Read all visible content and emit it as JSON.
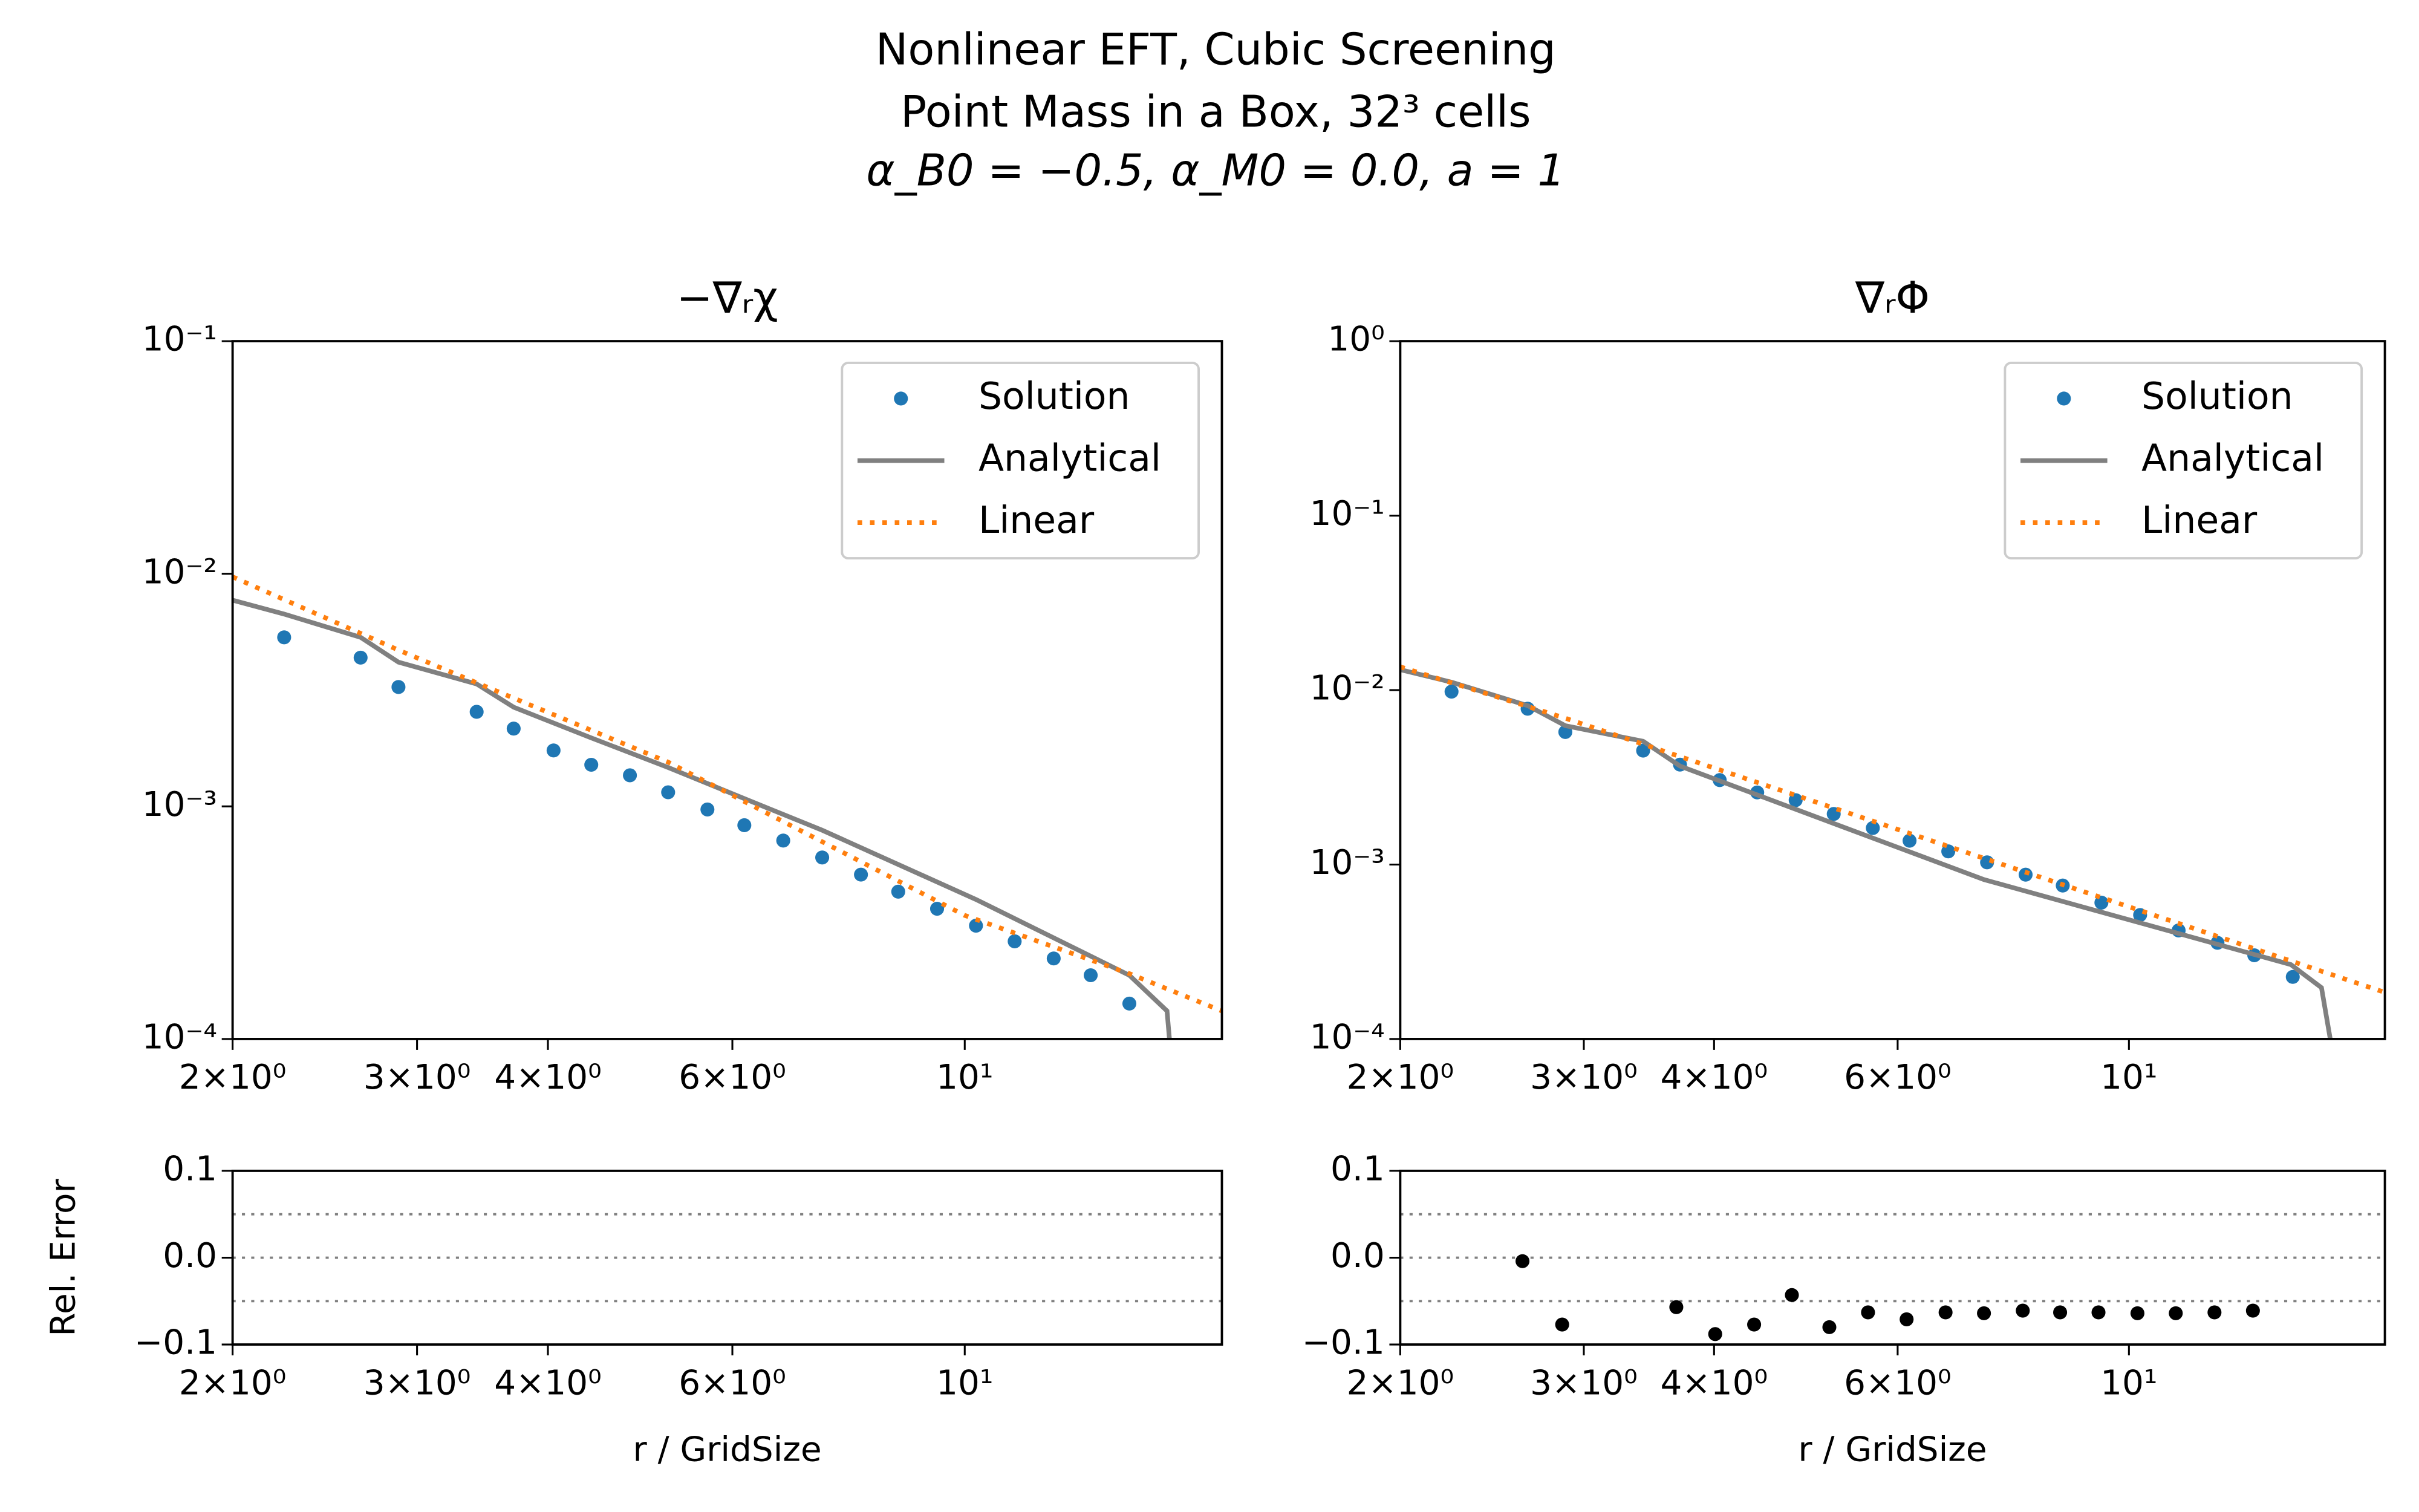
{
  "title_lines": [
    "Nonlinear EFT, Cubic Screening",
    "Point Mass in a Box, 32³ cells",
    "α_B0 = −0.5, α_M0 = 0.0, a = 1"
  ],
  "chart_data": [
    {
      "type": "line",
      "title": "−∇ᵣχ",
      "xlog": true,
      "ylog": true,
      "legend": "upper right",
      "xlim": [
        2,
        17.6
      ],
      "ylim": [
        0.0001,
        0.1
      ],
      "xticks": [
        {
          "value": 2,
          "label": "2×10⁰"
        },
        {
          "value": 3,
          "label": "3×10⁰"
        },
        {
          "value": 4,
          "label": "4×10⁰"
        },
        {
          "value": 6,
          "label": "6×10⁰"
        },
        {
          "value": 10,
          "label": "10¹"
        }
      ],
      "yticks": [
        {
          "value": 0.1,
          "label": "10⁻¹"
        },
        {
          "value": 0.01,
          "label": "10⁻²"
        },
        {
          "value": 0.001,
          "label": "10⁻³"
        },
        {
          "value": 0.0001,
          "label": "10⁻⁴"
        }
      ],
      "series": [
        {
          "name": "Solution",
          "color": "#1f77b4",
          "style": "markers",
          "x": [
            2.24,
            2.65,
            2.88,
            3.42,
            3.71,
            4.05,
            4.4,
            4.79,
            5.21,
            5.68,
            6.16,
            6.71,
            7.31,
            7.96,
            8.64,
            9.41,
            10.25,
            11.16,
            12.16,
            13.19,
            14.36
          ],
          "values": [
            0.00533,
            0.00436,
            0.00326,
            0.00255,
            0.00216,
            0.00174,
            0.00151,
            0.00136,
            0.00115,
            0.00097,
            0.00083,
            0.000713,
            0.000603,
            0.000509,
            0.00043,
            0.000363,
            0.000307,
            0.000263,
            0.000222,
            0.000188,
            0.000142
          ]
        },
        {
          "name": "Analytical",
          "color": "#808080",
          "style": "solid",
          "x": [
            2,
            2.24,
            2.65,
            2.88,
            3.42,
            3.71,
            4.4,
            5.21,
            6.16,
            7.31,
            10.25,
            14.36,
            15.6,
            15.75
          ],
          "values": [
            0.0077,
            0.00671,
            0.00533,
            0.00417,
            0.00336,
            0.00267,
            0.00197,
            0.00147,
            0.00108,
            0.00079,
            0.000398,
            0.000188,
            0.000132,
            8e-05
          ]
        },
        {
          "name": "Linear",
          "color": "#ff7f0e",
          "style": "dotted",
          "x": [
            2,
            2.88,
            3.42,
            5.21,
            10,
            14.36,
            17.6
          ],
          "values": [
            0.0097,
            0.0047,
            0.0034,
            0.00155,
            0.00034,
            0.000191,
            0.000132
          ]
        }
      ]
    },
    {
      "type": "line",
      "title": "∇ᵣΦ",
      "xlog": true,
      "ylog": true,
      "legend": "upper right",
      "xlim": [
        2,
        17.6
      ],
      "ylim": [
        0.0001,
        1
      ],
      "xticks": [
        {
          "value": 2,
          "label": "2×10⁰"
        },
        {
          "value": 3,
          "label": "3×10⁰"
        },
        {
          "value": 4,
          "label": "4×10⁰"
        },
        {
          "value": 6,
          "label": "6×10⁰"
        },
        {
          "value": 10,
          "label": "10¹"
        }
      ],
      "yticks": [
        {
          "value": 1,
          "label": "10⁰"
        },
        {
          "value": 0.1,
          "label": "10⁻¹"
        },
        {
          "value": 0.01,
          "label": "10⁻²"
        },
        {
          "value": 0.001,
          "label": "10⁻³"
        },
        {
          "value": 0.0001,
          "label": "10⁻⁴"
        }
      ],
      "series": [
        {
          "name": "Solution",
          "color": "#1f77b4",
          "style": "markers",
          "x": [
            2.24,
            2.65,
            2.88,
            3.42,
            3.71,
            4.05,
            4.4,
            4.79,
            5.21,
            5.68,
            6.16,
            6.71,
            7.31,
            7.96,
            8.64,
            9.41,
            10.25,
            11.16,
            12.16,
            13.19,
            14.36
          ],
          "values": [
            0.0098,
            0.00782,
            0.00575,
            0.0045,
            0.00374,
            0.00305,
            0.00259,
            0.00234,
            0.00195,
            0.00162,
            0.00137,
            0.00119,
            0.00103,
            0.000875,
            0.000758,
            0.000605,
            0.000514,
            0.000419,
            0.000356,
            0.000302,
            0.000227
          ]
        },
        {
          "name": "Analytical",
          "color": "#808080",
          "style": "solid",
          "x": [
            2,
            2.24,
            2.65,
            2.88,
            3.42,
            3.71,
            7.26,
            14.3,
            15.3,
            15.7
          ],
          "values": [
            0.0131,
            0.0111,
            0.00815,
            0.00625,
            0.00509,
            0.00367,
            0.00082,
            0.000267,
            0.000197,
            8e-05
          ]
        },
        {
          "name": "Linear",
          "color": "#ff7f0e",
          "style": "dotted",
          "x": [
            2,
            2.88,
            17.6
          ],
          "values": [
            0.0136,
            0.0069,
            0.000185
          ]
        }
      ]
    },
    {
      "type": "scatter",
      "xlog": true,
      "ylog": false,
      "xlabel": "r / GridSize",
      "ylabel": "Rel. Error",
      "xlim": [
        2,
        17.6
      ],
      "ylim": [
        -0.1,
        0.1
      ],
      "xticks": [
        {
          "value": 2,
          "label": "2×10⁰"
        },
        {
          "value": 3,
          "label": "3×10⁰"
        },
        {
          "value": 4,
          "label": "4×10⁰"
        },
        {
          "value": 6,
          "label": "6×10⁰"
        },
        {
          "value": 10,
          "label": "10¹"
        }
      ],
      "yticks": [
        {
          "value": -0.1,
          "label": "−0.1"
        },
        {
          "value": 0,
          "label": "0.0"
        },
        0.1
      ],
      "hlines": [
        0.05,
        0,
        -0.05
      ],
      "series": []
    },
    {
      "type": "scatter",
      "xlog": true,
      "ylog": false,
      "xlabel": "r / GridSize",
      "xlim": [
        2,
        17.6
      ],
      "ylim": [
        -0.1,
        0.1
      ],
      "xticks": [
        {
          "value": 2,
          "label": "2×10⁰"
        },
        {
          "value": 3,
          "label": "3×10⁰"
        },
        {
          "value": 4,
          "label": "4×10⁰"
        },
        {
          "value": 6,
          "label": "6×10⁰"
        },
        {
          "value": 10,
          "label": "10¹"
        }
      ],
      "yticks": [
        {
          "value": -0.1,
          "label": "−0.1"
        },
        {
          "value": 0,
          "label": "0.0"
        },
        0.1
      ],
      "hlines": [
        0.05,
        0,
        -0.05
      ],
      "series": [
        {
          "color": "#000000",
          "style": "markers",
          "x": [
            2.62,
            2.86,
            3.68,
            4.01,
            4.37,
            4.75,
            5.16,
            5.62,
            6.12,
            6.67,
            7.26,
            7.91,
            8.59,
            9.35,
            10.19,
            11.09,
            12.08,
            13.15
          ],
          "values": [
            -0.004,
            -0.077,
            -0.057,
            -0.088,
            -0.077,
            -0.043,
            -0.08,
            -0.063,
            -0.071,
            -0.063,
            -0.064,
            -0.061,
            -0.063,
            -0.063,
            -0.064,
            -0.064,
            -0.063,
            -0.061
          ]
        }
      ]
    }
  ]
}
